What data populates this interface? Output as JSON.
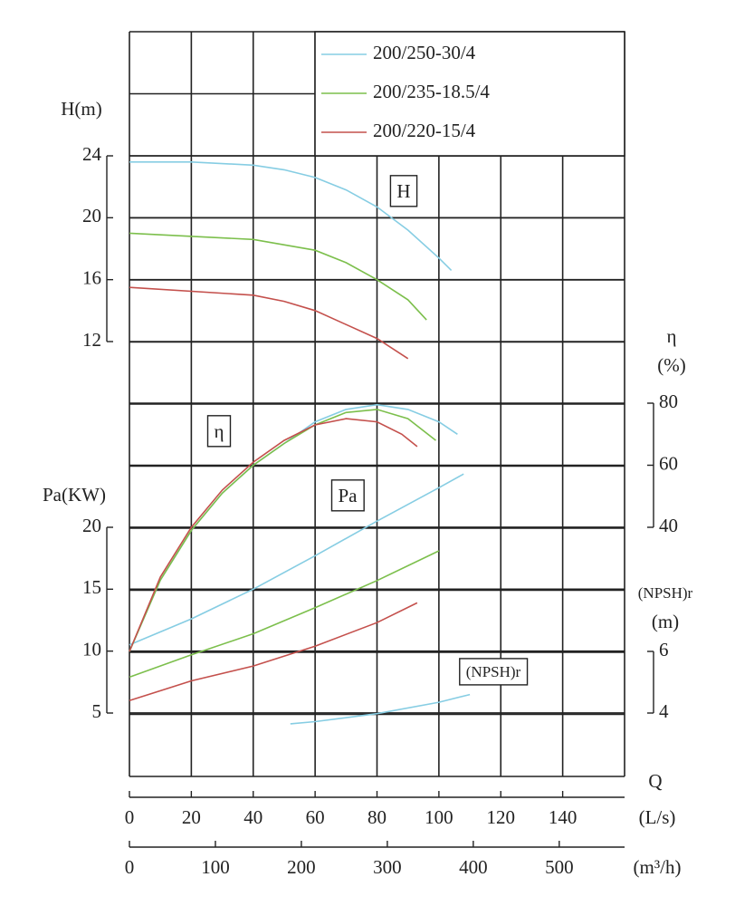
{
  "chart_data": {
    "type": "line",
    "grid": true,
    "legend": "upper right",
    "x_label": "Q",
    "x_axes": [
      {
        "label": "(L/s)",
        "xlim": [
          0,
          160
        ],
        "xticks": [
          0,
          20,
          40,
          60,
          80,
          100,
          120,
          140
        ]
      },
      {
        "label": "(m³/h)",
        "xlim": [
          0,
          576
        ],
        "xticks": [
          0,
          100,
          200,
          300,
          400,
          500
        ]
      }
    ],
    "y_axes": {
      "H": {
        "label": [
          "H(m)"
        ],
        "side": "left",
        "ylim": [
          12,
          24
        ],
        "yticks": [
          12,
          16,
          20,
          24
        ]
      },
      "eta": {
        "label": [
          "η",
          "(%)"
        ],
        "side": "right",
        "ylim": [
          40,
          80
        ],
        "yticks": [
          40,
          60,
          80
        ]
      },
      "Pa": {
        "label": [
          "Pa(KW)"
        ],
        "side": "left",
        "ylim": [
          5,
          20
        ],
        "yticks": [
          5,
          10,
          15,
          20
        ]
      },
      "NPSHr": {
        "label": [
          "(NPSH)r",
          "(m)"
        ],
        "side": "right",
        "ylim": [
          4,
          6
        ],
        "yticks": [
          4,
          6
        ]
      }
    },
    "annotations": {
      "H": "H",
      "eta": "η",
      "Pa": "Pa",
      "NPSHr": "(NPSH)r"
    },
    "series": [
      {
        "name": "200/250-30/4",
        "color": "#86cde3",
        "H": {
          "x": [
            0,
            20,
            40,
            50,
            60,
            70,
            80,
            90,
            100,
            104
          ],
          "values": [
            23.6,
            23.6,
            23.4,
            23.1,
            22.6,
            21.8,
            20.7,
            19.2,
            17.4,
            16.6
          ]
        },
        "eta": {
          "x": [
            0,
            10,
            20,
            30,
            40,
            50,
            60,
            70,
            80,
            90,
            100,
            106
          ],
          "values": [
            0,
            23,
            39,
            51,
            60,
            67,
            74,
            78,
            79.5,
            78,
            74,
            70
          ]
        },
        "Pa": {
          "x": [
            0,
            20,
            40,
            60,
            80,
            100,
            108
          ],
          "values": [
            10.5,
            12.6,
            15,
            17.7,
            20.5,
            23.2,
            24.3
          ]
        },
        "NPSHr": {
          "x": [
            52,
            60,
            80,
            100,
            110
          ],
          "values": [
            3.65,
            3.72,
            3.98,
            4.35,
            4.6
          ]
        }
      },
      {
        "name": "200/235-18.5/4",
        "color": "#7cbf4c",
        "H": {
          "x": [
            0,
            40,
            60,
            70,
            80,
            90,
            96
          ],
          "values": [
            19,
            18.6,
            17.9,
            17.1,
            16,
            14.7,
            13.4
          ]
        },
        "eta": {
          "x": [
            0,
            10,
            20,
            30,
            40,
            50,
            60,
            70,
            80,
            90,
            99
          ],
          "values": [
            0,
            23,
            39,
            51,
            60,
            67,
            73,
            77,
            78,
            75,
            68
          ]
        },
        "Pa": {
          "x": [
            0,
            20,
            40,
            60,
            80,
            100
          ],
          "values": [
            7.9,
            9.7,
            11.4,
            13.5,
            15.7,
            18.1
          ]
        }
      },
      {
        "name": "200/220-15/4",
        "color": "#c4504c",
        "H": {
          "x": [
            0,
            40,
            50,
            60,
            70,
            80,
            90
          ],
          "values": [
            15.5,
            15,
            14.6,
            14,
            13.1,
            12.2,
            10.9
          ]
        },
        "eta": {
          "x": [
            0,
            10,
            20,
            30,
            40,
            50,
            60,
            70,
            80,
            88,
            93
          ],
          "values": [
            0,
            24,
            40,
            52,
            61,
            68,
            73,
            75,
            74,
            70,
            66
          ]
        },
        "Pa": {
          "x": [
            0,
            20,
            40,
            60,
            80,
            93
          ],
          "values": [
            6,
            7.6,
            8.8,
            10.4,
            12.3,
            13.9
          ]
        }
      }
    ]
  }
}
